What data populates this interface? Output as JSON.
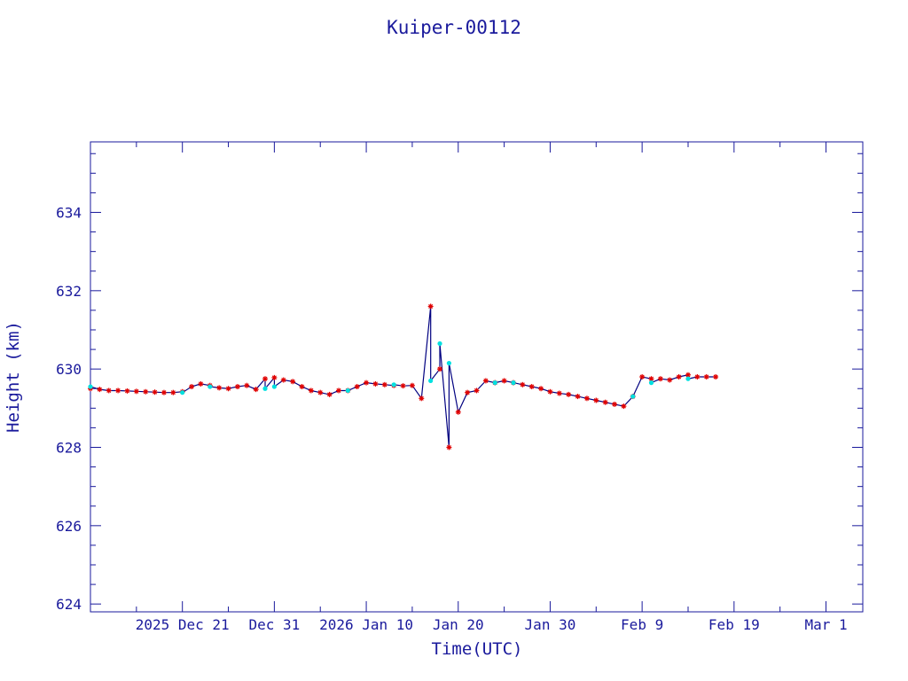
{
  "chart_data": {
    "type": "line",
    "title": "Kuiper-00112",
    "xlabel": "Time(UTC)",
    "ylabel": "Height (km)",
    "x_unit": "days",
    "xlim": [
      "2025-12-11",
      "2026-03-05"
    ],
    "ylim": [
      623.8,
      635.8
    ],
    "y_ticks": [
      624,
      626,
      628,
      630,
      632,
      634
    ],
    "x_ticks": [
      {
        "date": "2025-12-21",
        "label": "2025 Dec 21"
      },
      {
        "date": "2025-12-31",
        "label": "Dec 31"
      },
      {
        "date": "2026-01-10",
        "label": "2026 Jan 10"
      },
      {
        "date": "2026-01-20",
        "label": "Jan 20"
      },
      {
        "date": "2026-01-30",
        "label": "Jan 30"
      },
      {
        "date": "2026-02-09",
        "label": "Feb  9"
      },
      {
        "date": "2026-02-19",
        "label": "Feb 19"
      },
      {
        "date": "2026-03-01",
        "label": "Mar  1"
      }
    ],
    "grid": false,
    "colors": {
      "axis": "#1a1a9c",
      "line": "#000080",
      "marker_primary": "#e00000",
      "marker_secondary": "#00e0e0"
    },
    "series": [
      {
        "marker": "star",
        "x": [
          "2025-12-11",
          "2025-12-12",
          "2025-12-13",
          "2025-12-14",
          "2025-12-15",
          "2025-12-16",
          "2025-12-17",
          "2025-12-18",
          "2025-12-19",
          "2025-12-20",
          "2025-12-21",
          "2025-12-22",
          "2025-12-23",
          "2025-12-24",
          "2025-12-25",
          "2025-12-26",
          "2025-12-27",
          "2025-12-28",
          "2025-12-29",
          "2025-12-30",
          "2025-12-31",
          "2026-01-01",
          "2026-01-02",
          "2026-01-03",
          "2026-01-04",
          "2026-01-05",
          "2026-01-06",
          "2026-01-07",
          "2026-01-08",
          "2026-01-09",
          "2026-01-10",
          "2026-01-11",
          "2026-01-12",
          "2026-01-13",
          "2026-01-14",
          "2026-01-15",
          "2026-01-16",
          "2026-01-17",
          "2026-01-18",
          "2026-01-19",
          "2026-01-20",
          "2026-01-21",
          "2026-01-22",
          "2026-01-23",
          "2026-01-24",
          "2026-01-25",
          "2026-01-26",
          "2026-01-27",
          "2026-01-28",
          "2026-01-29",
          "2026-01-30",
          "2026-01-31",
          "2026-02-01",
          "2026-02-02",
          "2026-02-03",
          "2026-02-04",
          "2026-02-05",
          "2026-02-06",
          "2026-02-07",
          "2026-02-08",
          "2026-02-09",
          "2026-02-10",
          "2026-02-11",
          "2026-02-12",
          "2026-02-13",
          "2026-02-14",
          "2026-02-15",
          "2026-02-16",
          "2026-02-17"
        ],
        "y": [
          629.5,
          629.48,
          629.45,
          629.45,
          629.44,
          629.43,
          629.42,
          629.41,
          629.4,
          629.4,
          629.42,
          629.55,
          629.62,
          629.58,
          629.52,
          629.5,
          629.55,
          629.58,
          629.48,
          629.75,
          629.78,
          629.72,
          629.68,
          629.55,
          629.45,
          629.4,
          629.35,
          629.45,
          629.45,
          629.55,
          629.65,
          629.62,
          629.6,
          629.58,
          629.57,
          629.58,
          629.25,
          631.6,
          630.0,
          628.0,
          628.9,
          629.4,
          629.45,
          629.7,
          629.65,
          629.7,
          629.65,
          629.6,
          629.55,
          629.5,
          629.42,
          629.38,
          629.35,
          629.3,
          629.25,
          629.2,
          629.15,
          629.1,
          629.05,
          629.3,
          629.8,
          629.75,
          629.75,
          629.72,
          629.8,
          629.85,
          629.8,
          629.8,
          629.8
        ]
      },
      {
        "marker": "dot",
        "x": [
          "2025-12-11",
          "2025-12-21",
          "2025-12-24",
          "2025-12-30",
          "2025-12-31",
          "2026-01-08",
          "2026-01-13",
          "2026-01-17",
          "2026-01-18",
          "2026-01-19",
          "2026-01-24",
          "2026-01-26",
          "2026-02-08",
          "2026-02-10",
          "2026-02-14"
        ],
        "y": [
          629.55,
          629.4,
          629.55,
          629.5,
          629.55,
          629.45,
          629.6,
          629.7,
          630.65,
          630.15,
          629.65,
          629.65,
          629.3,
          629.65,
          629.75
        ]
      }
    ]
  }
}
